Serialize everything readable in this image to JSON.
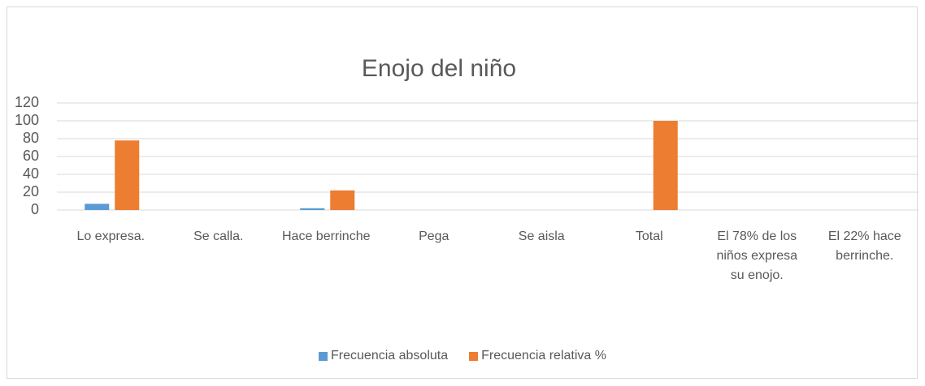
{
  "chart_data": {
    "type": "bar",
    "title": "Enojo del niño",
    "categories": [
      "Lo expresa.",
      "Se calla.",
      "Hace berrinche",
      "Pega",
      "Se aisla",
      "Total",
      "El 78% de los niños expresa su enojo.",
      "El 22%  hace berrinche."
    ],
    "series": [
      {
        "name": "Frecuencia absoluta",
        "color": "#5b9bd5",
        "values": [
          7,
          0,
          2,
          0,
          0,
          null,
          null,
          null
        ]
      },
      {
        "name": "Frecuencia relativa %",
        "color": "#ed7d31",
        "values": [
          78,
          0,
          22,
          0,
          0,
          100,
          null,
          null
        ]
      }
    ],
    "ylim": [
      0,
      120
    ],
    "yticks": [
      0,
      20,
      40,
      60,
      80,
      100,
      120
    ],
    "grid": true,
    "legend": "bottom"
  }
}
